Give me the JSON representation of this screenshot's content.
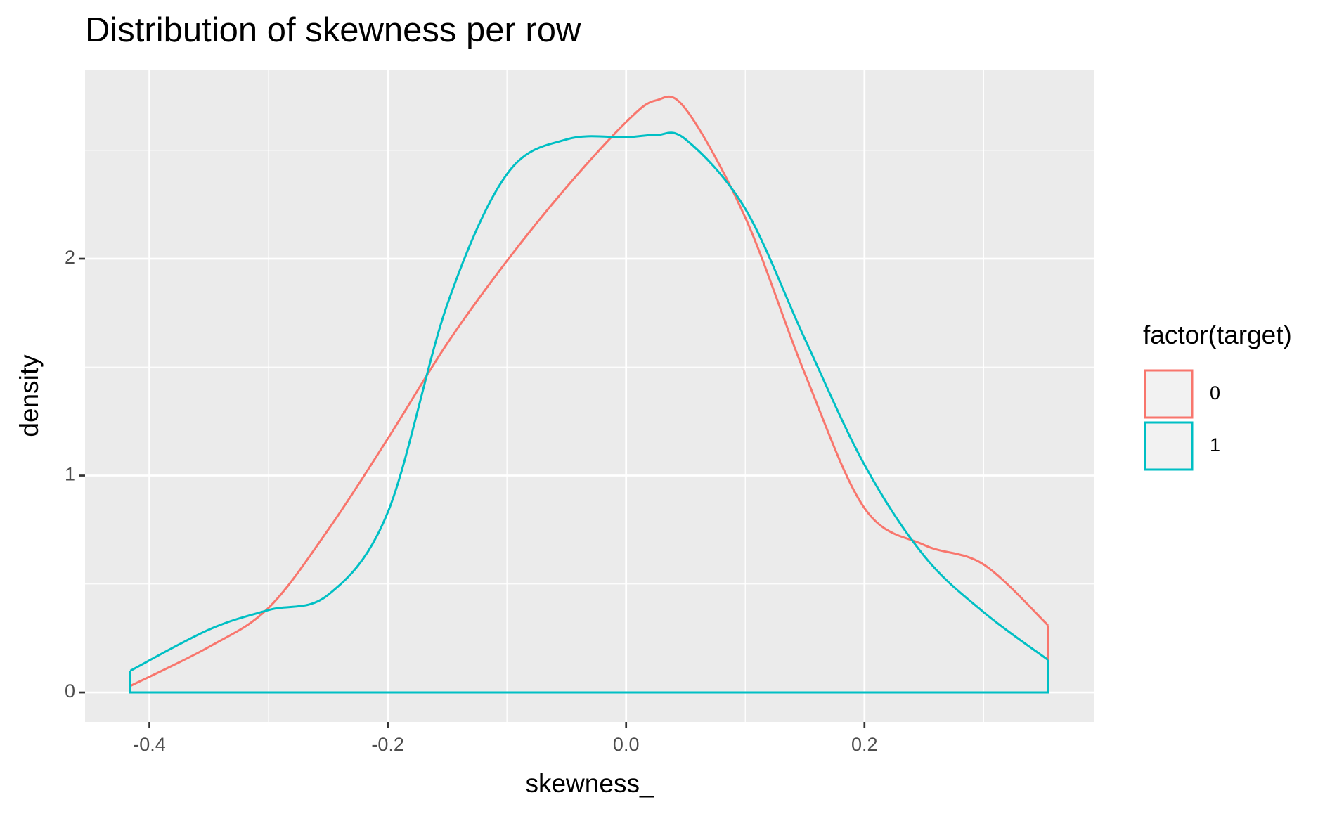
{
  "chart_data": {
    "type": "density",
    "title": "Distribution of skewness per row",
    "x_label": "skewness_",
    "y_label": "density",
    "legend_title": "factor(target)",
    "legend_position": "right",
    "x": [
      -0.416,
      -0.35,
      -0.3,
      -0.25,
      -0.2,
      -0.15,
      -0.1,
      -0.05,
      0.0,
      0.025,
      0.05,
      0.1,
      0.15,
      0.2,
      0.25,
      0.3,
      0.354
    ],
    "series": [
      {
        "name": "0",
        "color": "#f8766d",
        "values": [
          0.03,
          0.21,
          0.39,
          0.75,
          1.17,
          1.61,
          1.99,
          2.33,
          2.63,
          2.73,
          2.69,
          2.19,
          1.47,
          0.85,
          0.68,
          0.59,
          0.31
        ]
      },
      {
        "name": "1",
        "color": "#00bfc4",
        "values": [
          0.1,
          0.29,
          0.38,
          0.45,
          0.83,
          1.79,
          2.39,
          2.55,
          2.56,
          2.57,
          2.55,
          2.23,
          1.63,
          1.05,
          0.63,
          0.37,
          0.15
        ]
      }
    ],
    "xlim": [
      -0.454,
      0.393
    ],
    "ylim": [
      -0.136,
      2.872
    ],
    "xticks": [
      -0.4,
      -0.2,
      {
        "value": 0,
        "label": "0.0"
      },
      0.2
    ],
    "yticks": [
      0,
      1,
      2
    ],
    "grid": true,
    "minor_grid": true,
    "panel_color": "#ebebeb"
  }
}
